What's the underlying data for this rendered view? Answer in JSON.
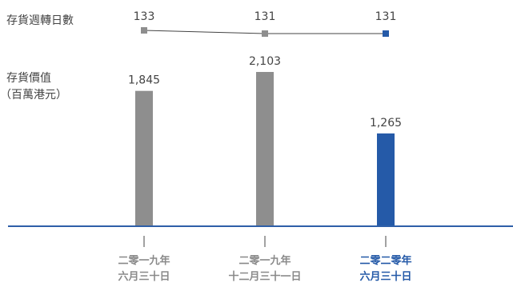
{
  "labels": {
    "turnover_label": "存貨週轉日數",
    "inventory_label_line1": "存貨價值",
    "inventory_label_line2": "（百萬港元）"
  },
  "colors": {
    "bar_default": "#8e8e8e",
    "bar_highlight": "#255aa8",
    "axis": "#2e5fa8",
    "line": "#444444",
    "text": "#444444",
    "cat_default": "#8a8a8a",
    "cat_highlight": "#255aa8"
  },
  "chart_data": [
    {
      "type": "line",
      "categories": [
        "二零一九年六月三十日",
        "二零一九年十二月三十一日",
        "二零二零年六月三十日"
      ],
      "series": [
        {
          "name": "存貨週轉日數",
          "values": [
            133,
            131,
            131
          ]
        }
      ],
      "value_labels": [
        "133",
        "131",
        "131"
      ],
      "highlight_index": 2
    },
    {
      "type": "bar",
      "categories": [
        [
          "二零一九年",
          "六月三十日"
        ],
        [
          "二零一九年",
          "十二月三十一日"
        ],
        [
          "二零二零年",
          "六月三十日"
        ]
      ],
      "values": [
        1845,
        2103,
        1265
      ],
      "value_labels": [
        "1,845",
        "2,103",
        "1,265"
      ],
      "ylabel": "存貨價值（百萬港元）",
      "ylim": [
        0,
        2300
      ],
      "highlight_index": 2
    }
  ]
}
